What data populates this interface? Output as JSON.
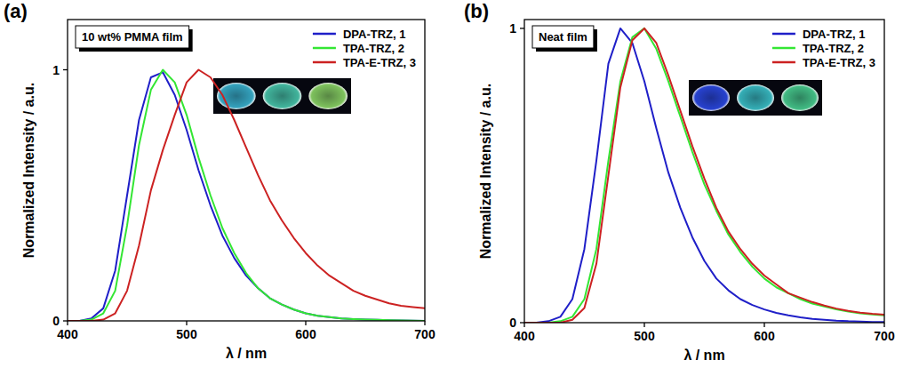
{
  "chart_data": [
    {
      "type": "line",
      "label": "(a)",
      "title": "10 wt% PMMA film",
      "x_label": "λ / nm",
      "y_label": "Normalized Intensity / a.u.",
      "xlim": [
        400,
        700
      ],
      "xticks": [
        400,
        500,
        600,
        700
      ],
      "ylim": [
        0,
        1.2
      ],
      "yticks": [
        0,
        1
      ],
      "legend": "upper right",
      "x": [
        400,
        410,
        420,
        430,
        440,
        450,
        460,
        470,
        480,
        490,
        500,
        510,
        520,
        530,
        540,
        550,
        560,
        570,
        580,
        590,
        600,
        610,
        620,
        630,
        640,
        650,
        660,
        670,
        680,
        690,
        700
      ],
      "series": [
        {
          "name": "DPA-TRZ, 1",
          "color": "#1f1fc8",
          "values": [
            0,
            0,
            0.01,
            0.05,
            0.2,
            0.5,
            0.8,
            0.97,
            0.99,
            0.9,
            0.76,
            0.6,
            0.46,
            0.34,
            0.25,
            0.18,
            0.13,
            0.09,
            0.065,
            0.045,
            0.03,
            0.02,
            0.015,
            0.01,
            0.007,
            0.005,
            0.004,
            0.003,
            0.002,
            0.001,
            0
          ]
        },
        {
          "name": "TPA-TRZ, 2",
          "color": "#33e633",
          "values": [
            0,
            0,
            0.005,
            0.03,
            0.12,
            0.38,
            0.7,
            0.92,
            1.0,
            0.95,
            0.82,
            0.65,
            0.5,
            0.37,
            0.27,
            0.19,
            0.13,
            0.09,
            0.065,
            0.045,
            0.03,
            0.02,
            0.015,
            0.01,
            0.007,
            0.005,
            0.004,
            0.003,
            0.002,
            0.001,
            0
          ]
        },
        {
          "name": "TPA-E-TRZ, 3",
          "color": "#cc2222",
          "values": [
            0,
            0,
            0,
            0.005,
            0.03,
            0.12,
            0.3,
            0.52,
            0.68,
            0.82,
            0.95,
            1.0,
            0.97,
            0.9,
            0.8,
            0.69,
            0.58,
            0.48,
            0.4,
            0.33,
            0.27,
            0.22,
            0.18,
            0.15,
            0.12,
            0.1,
            0.085,
            0.07,
            0.06,
            0.055,
            0.05
          ]
        }
      ]
    },
    {
      "type": "line",
      "label": "(b)",
      "title": "Neat film",
      "x_label": "λ / nm",
      "y_label": "Normalized Intensity / a.u.",
      "xlim": [
        400,
        700
      ],
      "xticks": [
        400,
        500,
        600,
        700
      ],
      "ylim": [
        0,
        1.03
      ],
      "yticks": [
        0,
        1
      ],
      "legend": "upper right",
      "x": [
        400,
        410,
        420,
        430,
        440,
        450,
        460,
        470,
        480,
        490,
        500,
        510,
        520,
        530,
        540,
        550,
        560,
        570,
        580,
        590,
        600,
        610,
        620,
        630,
        640,
        650,
        660,
        670,
        680,
        690,
        700
      ],
      "series": [
        {
          "name": "DPA-TRZ, 1",
          "color": "#1f1fc8",
          "values": [
            0,
            0,
            0.005,
            0.02,
            0.08,
            0.25,
            0.55,
            0.88,
            1.0,
            0.95,
            0.82,
            0.66,
            0.51,
            0.39,
            0.29,
            0.21,
            0.15,
            0.11,
            0.08,
            0.06,
            0.045,
            0.033,
            0.025,
            0.018,
            0.013,
            0.01,
            0.007,
            0.005,
            0.004,
            0.002,
            0.002
          ]
        },
        {
          "name": "TPA-TRZ, 2",
          "color": "#33e633",
          "values": [
            0,
            0,
            0,
            0.005,
            0.02,
            0.08,
            0.25,
            0.55,
            0.82,
            0.97,
            1.0,
            0.93,
            0.82,
            0.7,
            0.58,
            0.47,
            0.38,
            0.3,
            0.24,
            0.19,
            0.15,
            0.12,
            0.1,
            0.08,
            0.065,
            0.055,
            0.045,
            0.038,
            0.032,
            0.028,
            0.025
          ]
        },
        {
          "name": "TPA-E-TRZ, 3",
          "color": "#cc2222",
          "values": [
            0,
            0,
            0,
            0,
            0.01,
            0.05,
            0.2,
            0.5,
            0.8,
            0.96,
            1.0,
            0.95,
            0.84,
            0.72,
            0.6,
            0.49,
            0.39,
            0.31,
            0.25,
            0.2,
            0.16,
            0.13,
            0.1,
            0.085,
            0.07,
            0.058,
            0.048,
            0.04,
            0.034,
            0.03,
            0.027
          ]
        }
      ]
    }
  ]
}
